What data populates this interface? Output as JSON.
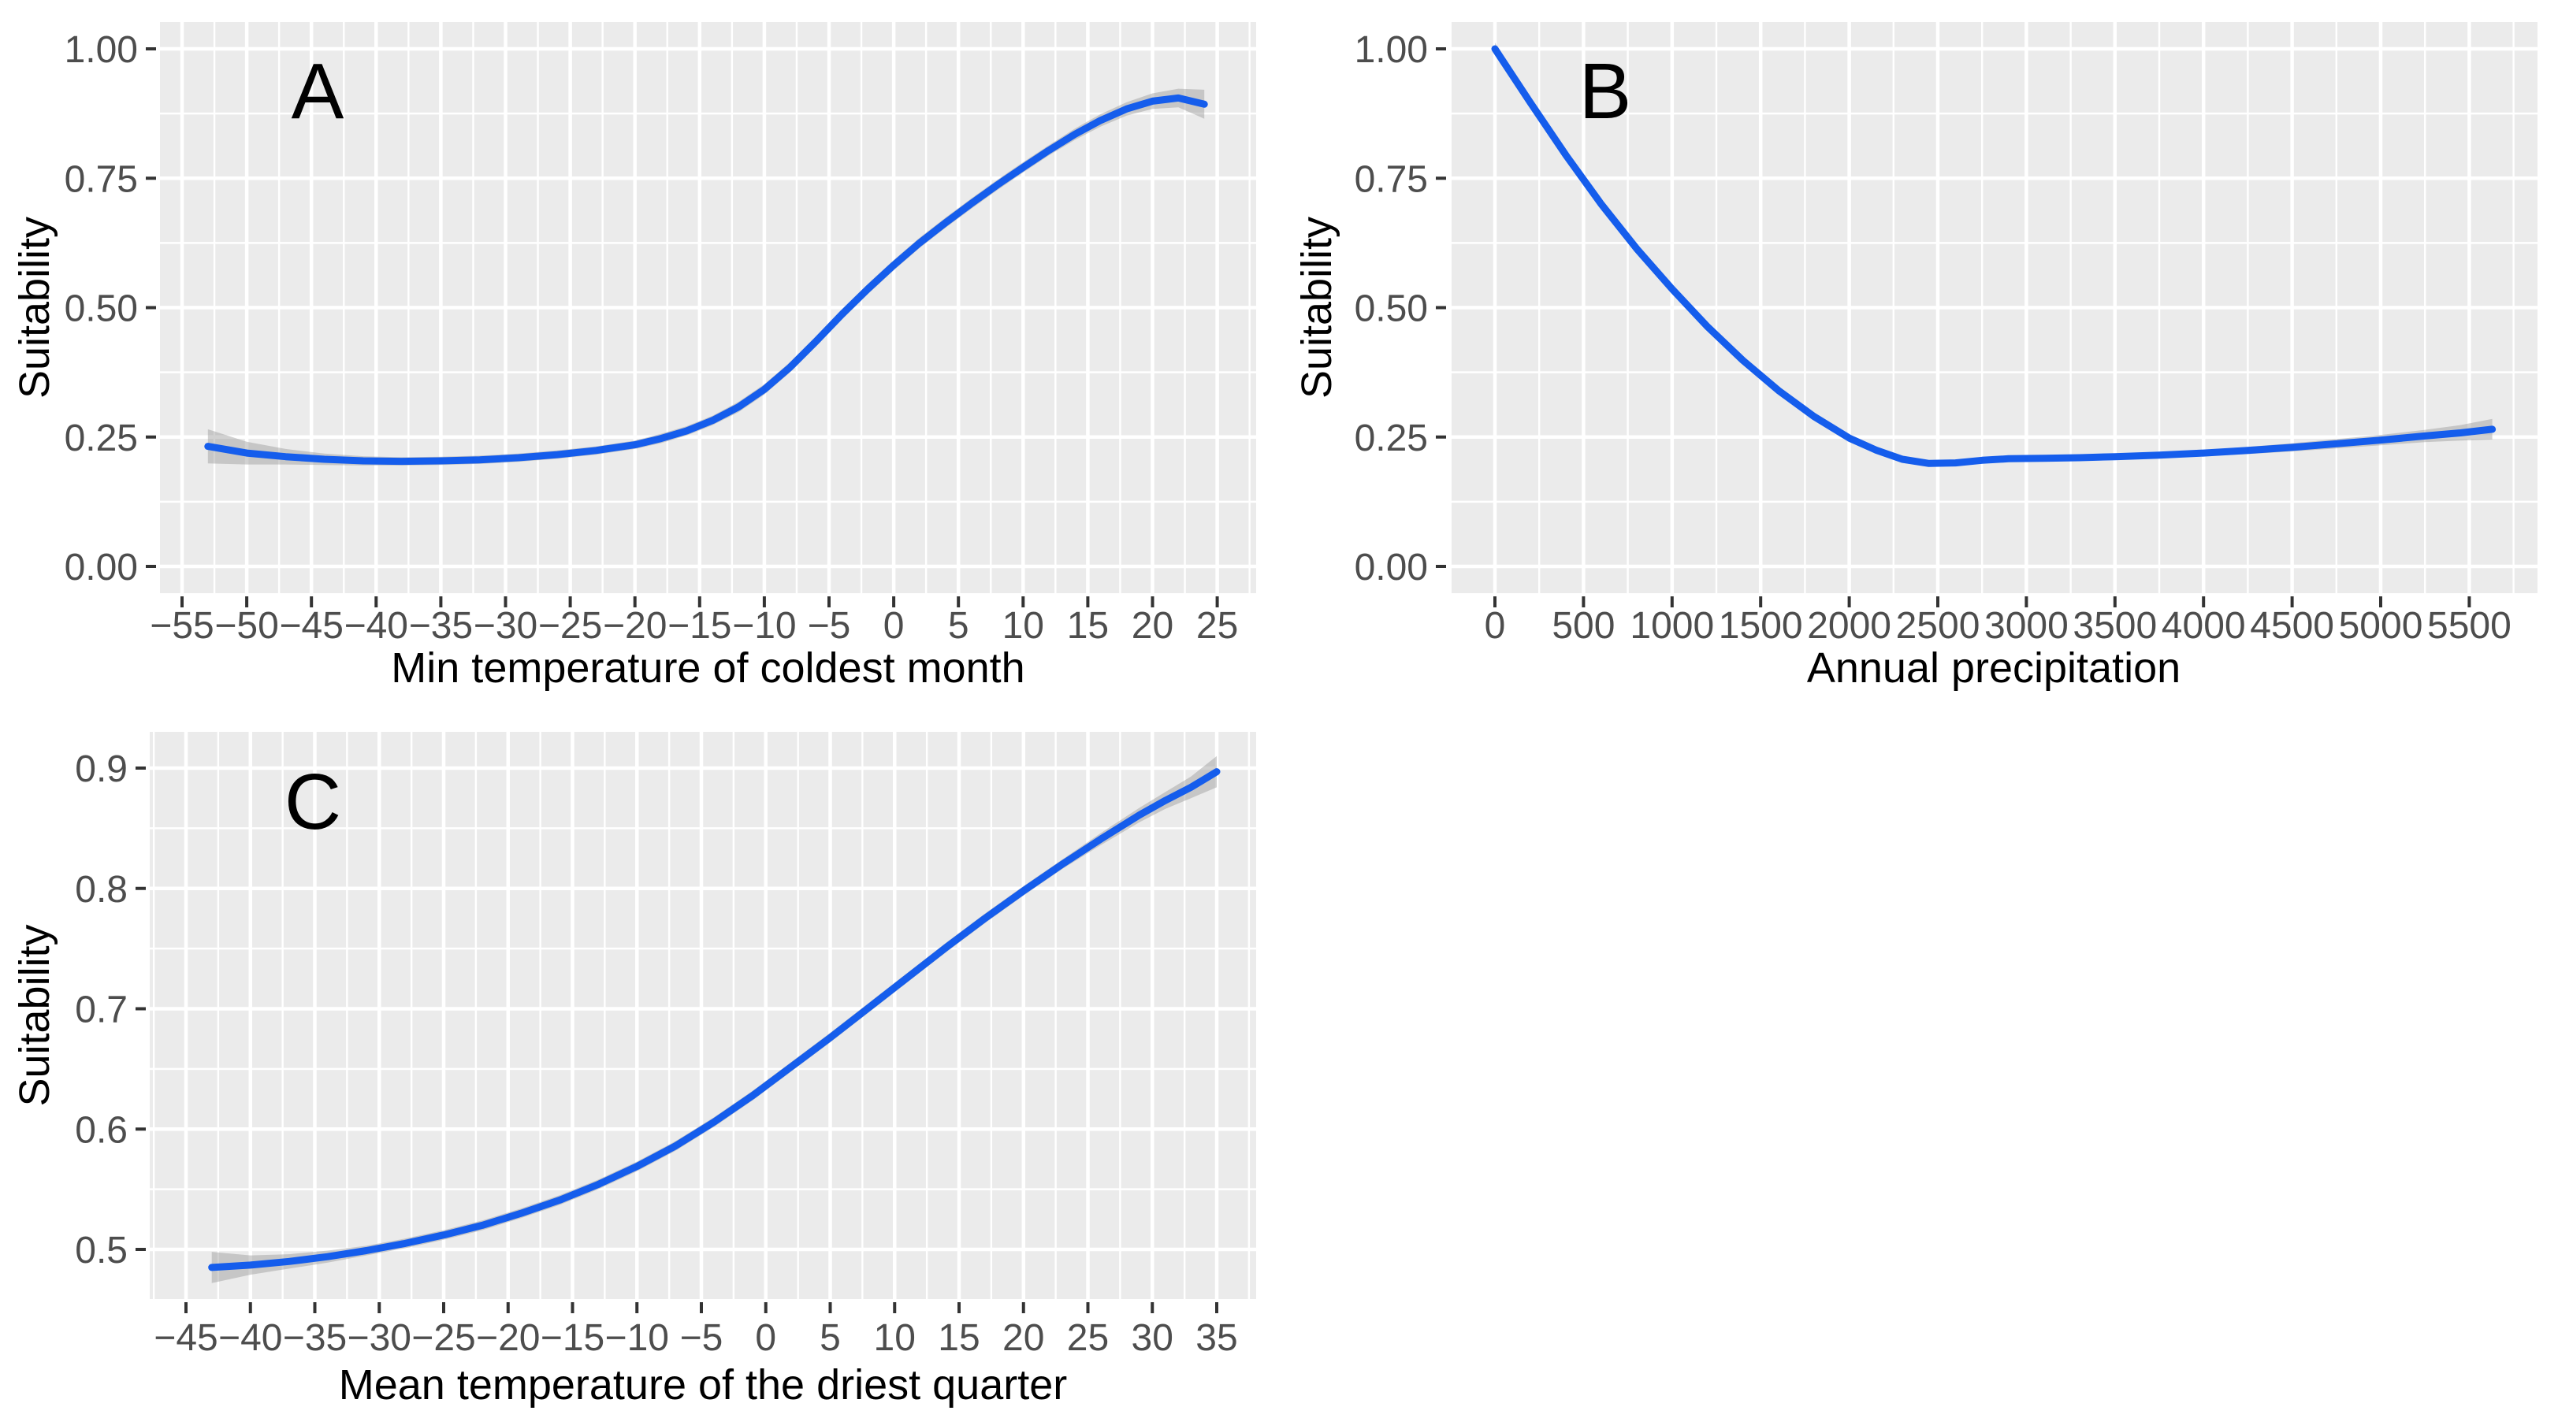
{
  "figure": {
    "background": "#ffffff",
    "panel_background": "#ebebeb",
    "grid_major_color": "#ffffff",
    "grid_minor_color": "#ffffff",
    "line_color": "#155dec",
    "band_color": "#999999",
    "tick_mark_color": "#333333",
    "tick_label_color": "#4d4d4d",
    "axis_title_color": "#000000",
    "panel_letter_color": "#000000"
  },
  "chart_data": [
    {
      "id": "A",
      "type": "line",
      "panel_label": "A",
      "title": "",
      "xlabel": "Min temperature of coldest month",
      "ylabel": "Suitability",
      "grid": true,
      "legend": "none",
      "x_tick_values": [
        -55,
        -50,
        -45,
        -40,
        -35,
        -30,
        -25,
        -20,
        -15,
        -10,
        -5,
        0,
        5,
        10,
        15,
        20,
        25
      ],
      "x_tick_labels": [
        "−55",
        "−50",
        "−45",
        "−40",
        "−35",
        "−30",
        "−25",
        "−20",
        "−15",
        "−10",
        "−5",
        "0",
        "5",
        "10",
        "15",
        "20",
        "25"
      ],
      "y_tick_values": [
        0.0,
        0.25,
        0.5,
        0.75,
        1.0
      ],
      "y_tick_labels": [
        "0.00",
        "0.25",
        "0.50",
        "0.75",
        "1.00"
      ],
      "xlim": [
        -56.7,
        28.0
      ],
      "ylim": [
        -0.052,
        1.052
      ],
      "x_major_step": 5,
      "y_major_step": 0.25,
      "series": [
        {
          "name": "smoothed-suitability",
          "x": [
            -53,
            -50,
            -47,
            -44,
            -41,
            -38,
            -35,
            -32,
            -29,
            -26,
            -23,
            -20,
            -18,
            -16,
            -14,
            -12,
            -10,
            -8,
            -6,
            -4,
            -2,
            0,
            2,
            4,
            6,
            8,
            10,
            12,
            14,
            16,
            18,
            20,
            22,
            24
          ],
          "y": [
            0.232,
            0.219,
            0.212,
            0.207,
            0.204,
            0.203,
            0.204,
            0.206,
            0.21,
            0.216,
            0.224,
            0.235,
            0.247,
            0.262,
            0.282,
            0.308,
            0.342,
            0.385,
            0.435,
            0.487,
            0.536,
            0.582,
            0.625,
            0.664,
            0.701,
            0.737,
            0.771,
            0.804,
            0.835,
            0.862,
            0.884,
            0.899,
            0.905,
            0.893
          ],
          "band_halfwidth": [
            0.033,
            0.022,
            0.015,
            0.011,
            0.009,
            0.008,
            0.008,
            0.008,
            0.008,
            0.008,
            0.008,
            0.008,
            0.009,
            0.009,
            0.009,
            0.01,
            0.01,
            0.01,
            0.01,
            0.01,
            0.01,
            0.01,
            0.01,
            0.01,
            0.01,
            0.01,
            0.01,
            0.01,
            0.011,
            0.012,
            0.013,
            0.015,
            0.018,
            0.028
          ]
        }
      ]
    },
    {
      "id": "B",
      "type": "line",
      "panel_label": "B",
      "title": "",
      "xlabel": "Annual precipitation",
      "ylabel": "Suitability",
      "grid": true,
      "legend": "none",
      "x_tick_values": [
        0,
        500,
        1000,
        1500,
        2000,
        2500,
        3000,
        3500,
        4000,
        4500,
        5000,
        5500
      ],
      "x_tick_labels": [
        "0",
        "500",
        "1000",
        "1500",
        "2000",
        "2500",
        "3000",
        "3500",
        "4000",
        "4500",
        "5000",
        "5500"
      ],
      "y_tick_values": [
        0.0,
        0.25,
        0.5,
        0.75,
        1.0
      ],
      "y_tick_labels": [
        "0.00",
        "0.25",
        "0.50",
        "0.75",
        "1.00"
      ],
      "xlim": [
        -254,
        5885
      ],
      "ylim": [
        -0.052,
        1.052
      ],
      "x_major_step": 500,
      "y_major_step": 0.25,
      "series": [
        {
          "name": "smoothed-suitability",
          "x": [
            0,
            200,
            400,
            600,
            800,
            1000,
            1200,
            1400,
            1600,
            1800,
            2000,
            2150,
            2300,
            2450,
            2600,
            2750,
            2900,
            3100,
            3300,
            3500,
            3750,
            4000,
            4250,
            4500,
            4750,
            5000,
            5250,
            5450,
            5630
          ],
          "y": [
            1.0,
            0.896,
            0.795,
            0.7,
            0.614,
            0.536,
            0.463,
            0.398,
            0.34,
            0.29,
            0.248,
            0.225,
            0.207,
            0.199,
            0.2,
            0.205,
            0.208,
            0.209,
            0.21,
            0.212,
            0.215,
            0.219,
            0.224,
            0.23,
            0.237,
            0.244,
            0.252,
            0.258,
            0.265
          ],
          "band_halfwidth": [
            0.012,
            0.007,
            0.006,
            0.006,
            0.006,
            0.006,
            0.006,
            0.006,
            0.006,
            0.006,
            0.006,
            0.006,
            0.006,
            0.006,
            0.006,
            0.006,
            0.006,
            0.006,
            0.006,
            0.006,
            0.006,
            0.006,
            0.007,
            0.008,
            0.009,
            0.01,
            0.012,
            0.015,
            0.02
          ]
        }
      ]
    },
    {
      "id": "C",
      "type": "line",
      "panel_label": "C",
      "title": "",
      "xlabel": "Mean temperature of the driest quarter",
      "ylabel": "Suitability",
      "grid": true,
      "legend": "none",
      "x_tick_values": [
        -45,
        -40,
        -35,
        -30,
        -25,
        -20,
        -15,
        -10,
        -5,
        0,
        5,
        10,
        15,
        20,
        25,
        30,
        35
      ],
      "x_tick_labels": [
        "−45",
        "−40",
        "−35",
        "−30",
        "−25",
        "−20",
        "−15",
        "−10",
        "−5",
        "0",
        "5",
        "10",
        "15",
        "20",
        "25",
        "30",
        "35"
      ],
      "y_tick_values": [
        0.5,
        0.6,
        0.7,
        0.8,
        0.9
      ],
      "y_tick_labels": [
        "0.5",
        "0.6",
        "0.7",
        "0.8",
        "0.9"
      ],
      "xlim": [
        -47.8,
        38.0
      ],
      "ylim": [
        0.459,
        0.93
      ],
      "x_major_step": 5,
      "y_major_step": 0.1,
      "series": [
        {
          "name": "smoothed-suitability",
          "x": [
            -43,
            -40,
            -37,
            -34,
            -31,
            -28,
            -25,
            -22,
            -19,
            -16,
            -13,
            -10,
            -7,
            -4,
            -1,
            2,
            5,
            8,
            11,
            14,
            17,
            20,
            23,
            26,
            29,
            31,
            33,
            35
          ],
          "y": [
            0.485,
            0.487,
            0.49,
            0.494,
            0.499,
            0.505,
            0.512,
            0.52,
            0.53,
            0.541,
            0.554,
            0.569,
            0.586,
            0.606,
            0.628,
            0.652,
            0.676,
            0.701,
            0.726,
            0.751,
            0.775,
            0.798,
            0.82,
            0.841,
            0.861,
            0.873,
            0.884,
            0.897
          ],
          "band_halfwidth": [
            0.013,
            0.008,
            0.006,
            0.005,
            0.004,
            0.004,
            0.004,
            0.004,
            0.004,
            0.004,
            0.004,
            0.004,
            0.004,
            0.004,
            0.004,
            0.004,
            0.004,
            0.004,
            0.004,
            0.004,
            0.004,
            0.004,
            0.004,
            0.005,
            0.006,
            0.007,
            0.009,
            0.013
          ]
        }
      ]
    }
  ]
}
